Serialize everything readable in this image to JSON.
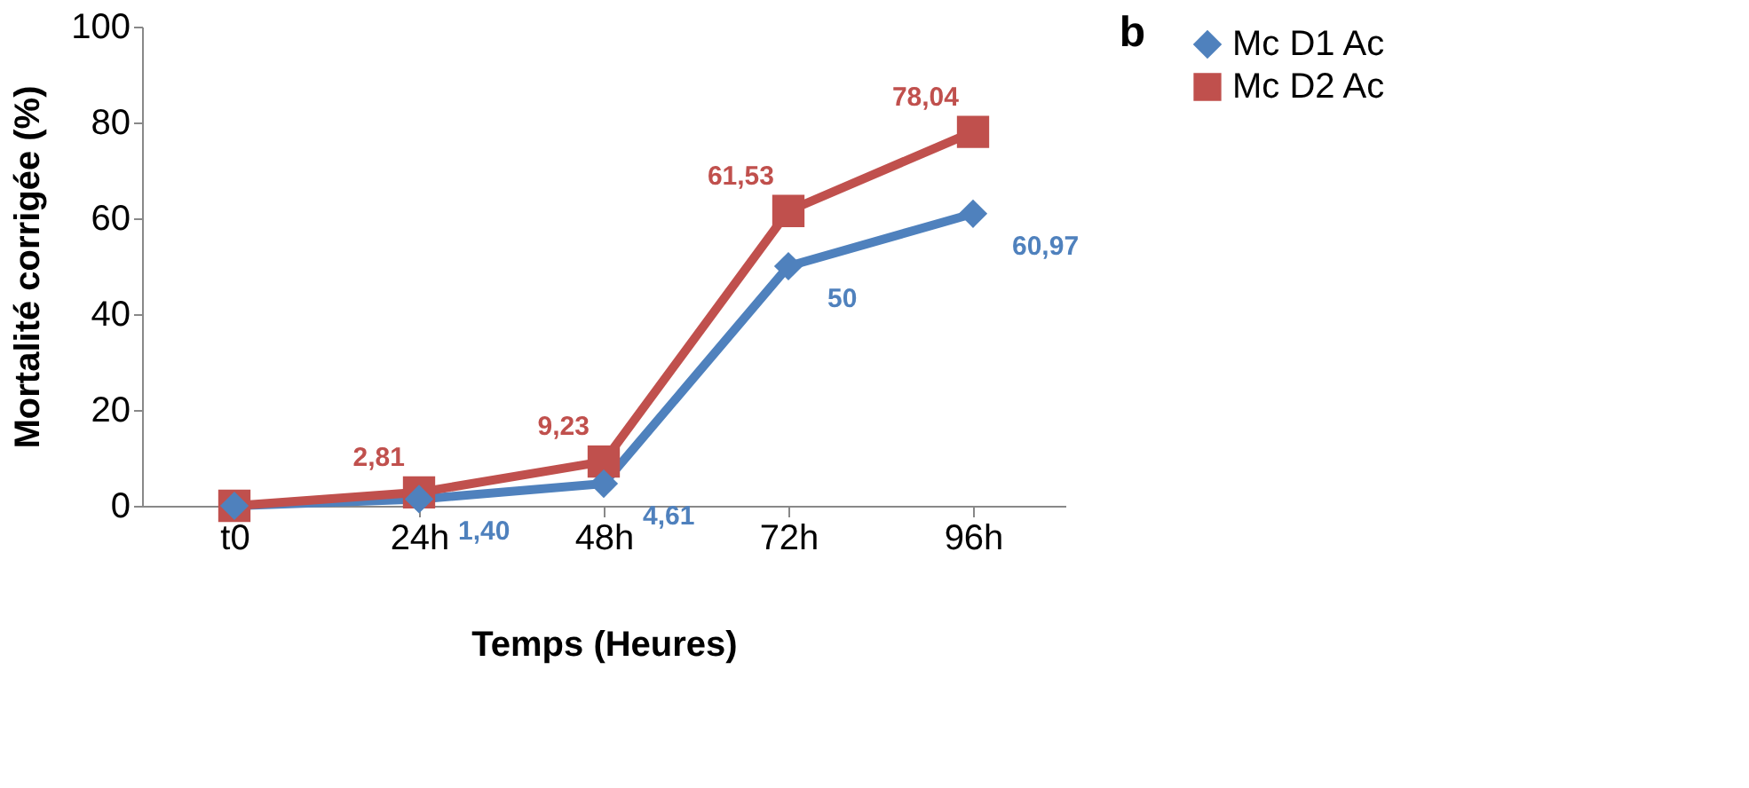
{
  "chart_data": {
    "type": "line",
    "xlabel": "Temps (Heures)",
    "ylabel": "Mortalité corrigée (%)",
    "categories": [
      "t0",
      "24h",
      "48h",
      "72h",
      "96h"
    ],
    "series": [
      {
        "name": "Mc D1 Ac",
        "color": "#4f81bd",
        "marker": "diamond",
        "values": [
          0,
          1.4,
          4.61,
          50,
          60.97
        ],
        "value_labels": [
          null,
          "1,40",
          "4,61",
          "50",
          "60,97"
        ]
      },
      {
        "name": "Mc D2 Ac",
        "color": "#c0504d",
        "marker": "square",
        "values": [
          0,
          2.81,
          9.23,
          61.53,
          78.04
        ],
        "value_labels": [
          null,
          "2,81",
          "9,23",
          "61,53",
          "78,04"
        ]
      }
    ],
    "ylim": [
      0,
      100
    ],
    "yticks": [
      0,
      20,
      40,
      60,
      80,
      100
    ],
    "grid": false,
    "legend": "right",
    "annotations": [
      "b"
    ]
  }
}
